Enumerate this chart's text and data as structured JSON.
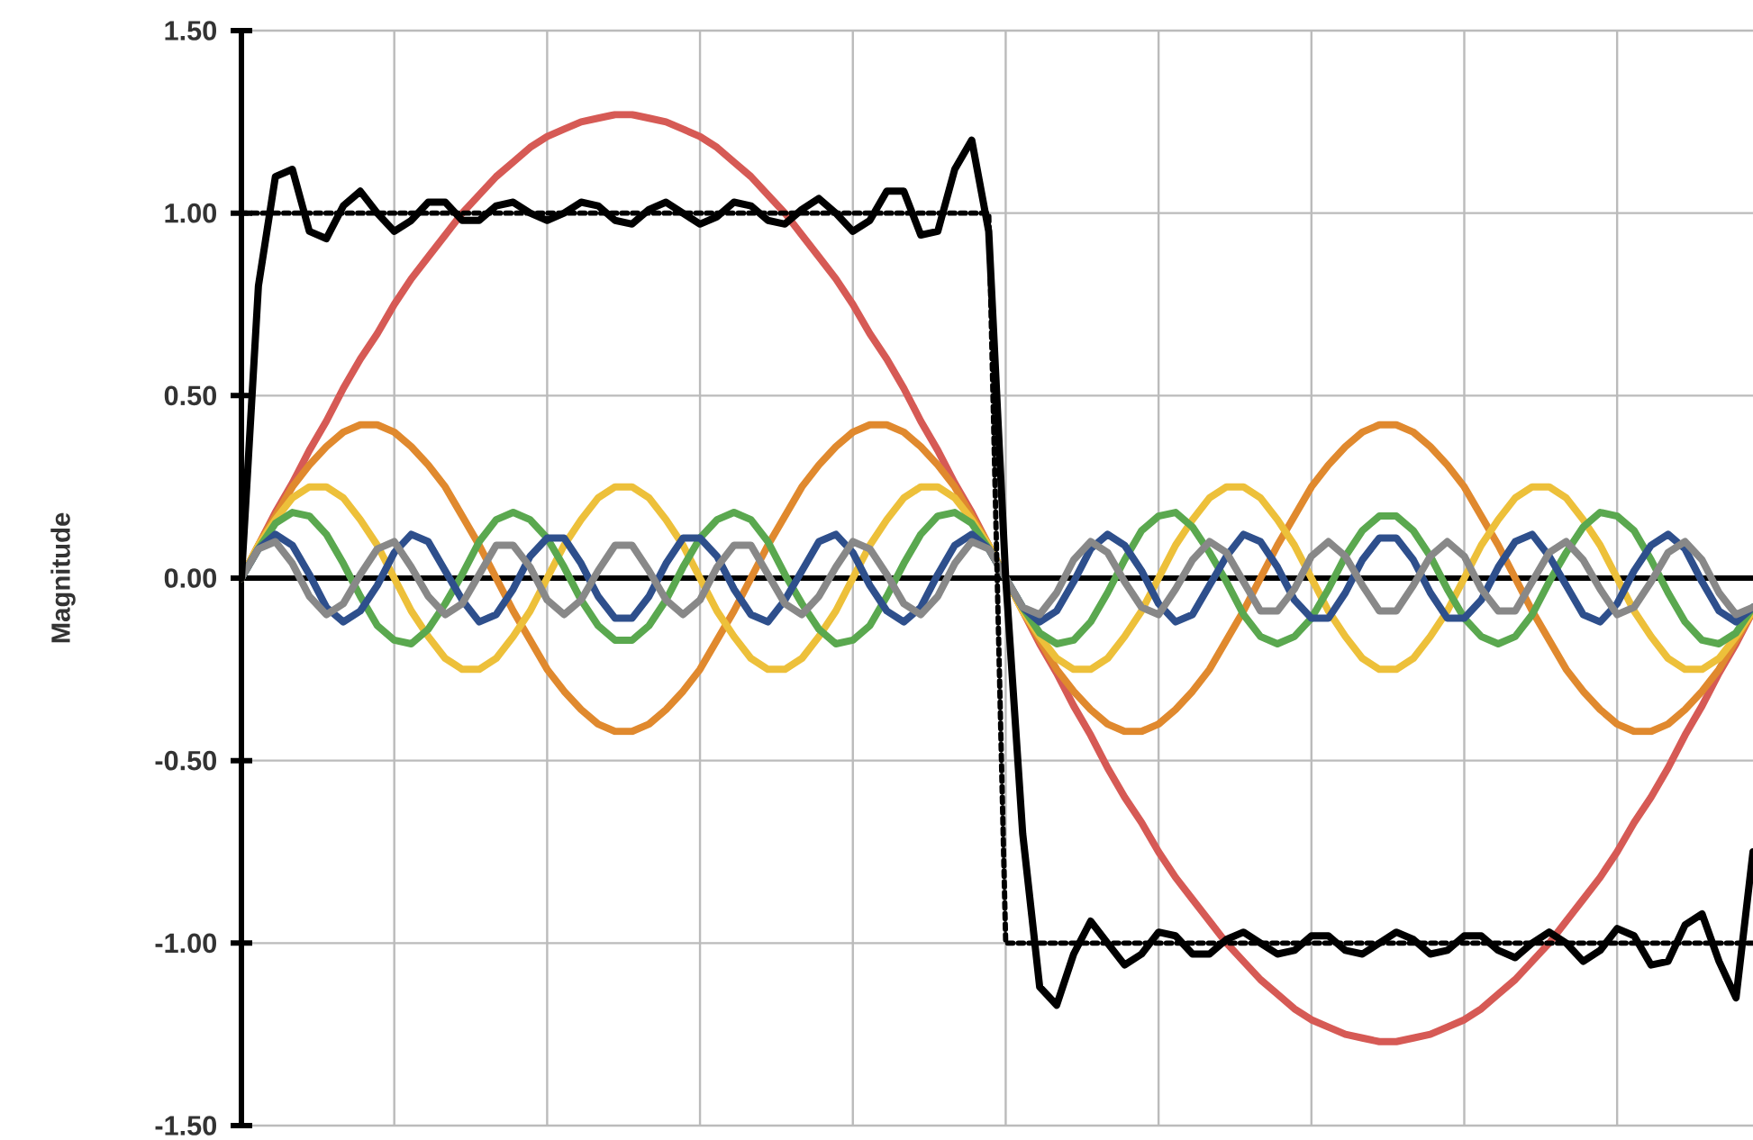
{
  "chart_data": {
    "type": "line",
    "ylabel": "Magnitude",
    "grid": true,
    "tick_labels": "y",
    "categories": [
      null,
      null,
      null,
      null,
      null,
      null,
      null,
      null,
      null,
      null,
      null,
      null,
      null,
      null,
      null,
      null,
      null,
      null,
      null,
      null,
      null,
      null,
      null,
      null,
      null,
      null,
      null,
      null,
      null,
      null,
      null,
      null,
      null,
      null,
      null,
      null,
      null,
      null,
      null,
      null,
      null,
      null,
      null,
      null,
      null,
      null,
      null,
      null,
      null,
      null,
      null,
      null,
      null,
      null,
      null,
      null,
      null,
      null,
      null,
      null,
      null,
      null,
      null,
      null,
      null,
      null,
      null,
      null,
      null,
      null,
      null,
      null,
      null,
      null,
      null,
      null,
      null,
      null,
      null,
      null,
      null,
      null,
      null,
      null,
      null,
      null,
      null,
      null,
      null,
      null
    ],
    "ylim": [
      -1.5,
      1.5
    ],
    "yticks": [
      {
        "value": -1.5,
        "label": "-1.50"
      },
      {
        "value": -1,
        "label": "-1.00"
      },
      {
        "value": -0.5,
        "label": "-0.50"
      },
      {
        "value": 0,
        "label": "0.00"
      },
      {
        "value": 0.5,
        "label": "0.50"
      },
      {
        "value": 1,
        "label": "1.00"
      },
      {
        "value": 1.5,
        "label": "1.50"
      }
    ],
    "series": [
      {
        "color": "#d65a55",
        "values": [
          0,
          0.09,
          0.18,
          0.26,
          0.35,
          0.43,
          0.52,
          0.6,
          0.67,
          0.75,
          0.82,
          0.88,
          0.94,
          1.0,
          1.05,
          1.1,
          1.14,
          1.18,
          1.21,
          1.23,
          1.25,
          1.26,
          1.27,
          1.27,
          1.26,
          1.25,
          1.23,
          1.21,
          1.18,
          1.14,
          1.1,
          1.05,
          1.0,
          0.94,
          0.88,
          0.82,
          0.75,
          0.67,
          0.6,
          0.52,
          0.43,
          0.35,
          0.26,
          0.18,
          0.09,
          0,
          -0.09,
          -0.18,
          -0.26,
          -0.35,
          -0.43,
          -0.52,
          -0.6,
          -0.67,
          -0.75,
          -0.82,
          -0.88,
          -0.94,
          -1.0,
          -1.05,
          -1.1,
          -1.14,
          -1.18,
          -1.21,
          -1.23,
          -1.25,
          -1.26,
          -1.27,
          -1.27,
          -1.26,
          -1.25,
          -1.23,
          -1.21,
          -1.18,
          -1.14,
          -1.1,
          -1.05,
          -1.0,
          -0.94,
          -0.88,
          -0.82,
          -0.75,
          -0.67,
          -0.6,
          -0.52,
          -0.43,
          -0.35,
          -0.26,
          -0.18,
          -0.09
        ]
      },
      {
        "color": "#e0892e",
        "values": [
          0,
          0.09,
          0.17,
          0.25,
          0.31,
          0.36,
          0.4,
          0.42,
          0.42,
          0.4,
          0.36,
          0.31,
          0.25,
          0.17,
          0.09,
          0,
          -0.09,
          -0.17,
          -0.25,
          -0.31,
          -0.36,
          -0.4,
          -0.42,
          -0.42,
          -0.4,
          -0.36,
          -0.31,
          -0.25,
          -0.17,
          -0.09,
          0,
          0.09,
          0.17,
          0.25,
          0.31,
          0.36,
          0.4,
          0.42,
          0.42,
          0.4,
          0.36,
          0.31,
          0.25,
          0.17,
          0.09,
          0,
          -0.09,
          -0.17,
          -0.25,
          -0.31,
          -0.36,
          -0.4,
          -0.42,
          -0.42,
          -0.4,
          -0.36,
          -0.31,
          -0.25,
          -0.17,
          -0.09,
          0,
          0.09,
          0.17,
          0.25,
          0.31,
          0.36,
          0.4,
          0.42,
          0.42,
          0.4,
          0.36,
          0.31,
          0.25,
          0.17,
          0.09,
          0,
          -0.09,
          -0.17,
          -0.25,
          -0.31,
          -0.36,
          -0.4,
          -0.42,
          -0.42,
          -0.4,
          -0.36,
          -0.31,
          -0.25,
          -0.17,
          -0.09
        ]
      },
      {
        "color": "#edc03a",
        "values": [
          0,
          0.09,
          0.16,
          0.22,
          0.25,
          0.25,
          0.22,
          0.16,
          0.09,
          0,
          -0.09,
          -0.16,
          -0.22,
          -0.25,
          -0.25,
          -0.22,
          -0.16,
          -0.09,
          0,
          0.09,
          0.16,
          0.22,
          0.25,
          0.25,
          0.22,
          0.16,
          0.09,
          0,
          -0.09,
          -0.16,
          -0.22,
          -0.25,
          -0.25,
          -0.22,
          -0.16,
          -0.09,
          0,
          0.09,
          0.16,
          0.22,
          0.25,
          0.25,
          0.22,
          0.16,
          0.09,
          0,
          -0.09,
          -0.16,
          -0.22,
          -0.25,
          -0.25,
          -0.22,
          -0.16,
          -0.09,
          0,
          0.09,
          0.16,
          0.22,
          0.25,
          0.25,
          0.22,
          0.16,
          0.09,
          0,
          -0.09,
          -0.16,
          -0.22,
          -0.25,
          -0.25,
          -0.22,
          -0.16,
          -0.09,
          0,
          0.09,
          0.16,
          0.22,
          0.25,
          0.25,
          0.22,
          0.16,
          0.09,
          0,
          -0.09,
          -0.16,
          -0.22,
          -0.25,
          -0.25,
          -0.22,
          -0.16,
          -0.09
        ]
      },
      {
        "color": "#5aa84f",
        "values": [
          0,
          0.08,
          0.15,
          0.18,
          0.17,
          0.12,
          0.04,
          -0.05,
          -0.13,
          -0.17,
          -0.18,
          -0.14,
          -0.07,
          0.01,
          0.1,
          0.16,
          0.18,
          0.16,
          0.11,
          0.03,
          -0.06,
          -0.13,
          -0.17,
          -0.17,
          -0.13,
          -0.06,
          0.03,
          0.11,
          0.16,
          0.18,
          0.16,
          0.1,
          0.01,
          -0.07,
          -0.14,
          -0.18,
          -0.17,
          -0.13,
          -0.05,
          0.04,
          0.12,
          0.17,
          0.18,
          0.15,
          0.08,
          0,
          -0.08,
          -0.15,
          -0.18,
          -0.17,
          -0.12,
          -0.04,
          0.05,
          0.13,
          0.17,
          0.18,
          0.14,
          0.07,
          -0.01,
          -0.1,
          -0.16,
          -0.18,
          -0.16,
          -0.11,
          -0.03,
          0.06,
          0.13,
          0.17,
          0.17,
          0.13,
          0.06,
          -0.03,
          -0.11,
          -0.16,
          -0.18,
          -0.16,
          -0.1,
          -0.01,
          0.07,
          0.14,
          0.18,
          0.17,
          0.13,
          0.05,
          -0.04,
          -0.12,
          -0.17,
          -0.18,
          -0.15,
          -0.08
        ]
      },
      {
        "color": "#2e4f8c",
        "values": [
          0,
          0.08,
          0.12,
          0.09,
          0.01,
          -0.08,
          -0.12,
          -0.09,
          -0.02,
          0.07,
          0.12,
          0.1,
          0.02,
          -0.06,
          -0.12,
          -0.1,
          -0.03,
          0.06,
          0.11,
          0.11,
          0.04,
          -0.05,
          -0.11,
          -0.11,
          -0.05,
          0.04,
          0.11,
          0.11,
          0.06,
          -0.03,
          -0.1,
          -0.12,
          -0.06,
          0.02,
          0.1,
          0.12,
          0.07,
          -0.02,
          -0.09,
          -0.12,
          -0.08,
          0.01,
          0.09,
          0.12,
          0.08,
          0,
          -0.08,
          -0.12,
          -0.09,
          -0.01,
          0.08,
          0.12,
          0.09,
          0.02,
          -0.07,
          -0.12,
          -0.1,
          -0.02,
          0.06,
          0.12,
          0.1,
          0.03,
          -0.06,
          -0.11,
          -0.11,
          -0.04,
          0.05,
          0.11,
          0.11,
          0.05,
          -0.04,
          -0.11,
          -0.11,
          -0.06,
          0.03,
          0.1,
          0.12,
          0.06,
          -0.02,
          -0.1,
          -0.12,
          -0.07,
          0.02,
          0.09,
          0.12,
          0.08,
          -0.01,
          -0.09,
          -0.12,
          -0.08
        ]
      },
      {
        "color": "#888888",
        "values": [
          0,
          0.08,
          0.1,
          0.04,
          -0.05,
          -0.1,
          -0.07,
          0.01,
          0.08,
          0.1,
          0.03,
          -0.05,
          -0.1,
          -0.07,
          0.01,
          0.09,
          0.09,
          0.03,
          -0.06,
          -0.1,
          -0.06,
          0.02,
          0.09,
          0.09,
          0.02,
          -0.06,
          -0.1,
          -0.06,
          0.03,
          0.09,
          0.09,
          0.01,
          -0.07,
          -0.1,
          -0.05,
          0.03,
          0.1,
          0.08,
          0.01,
          -0.07,
          -0.1,
          -0.05,
          0.04,
          0.1,
          0.08,
          0,
          -0.08,
          -0.1,
          -0.04,
          0.05,
          0.1,
          0.07,
          -0.01,
          -0.08,
          -0.1,
          -0.03,
          0.05,
          0.1,
          0.07,
          -0.01,
          -0.09,
          -0.09,
          -0.03,
          0.06,
          0.1,
          0.06,
          -0.02,
          -0.09,
          -0.09,
          -0.02,
          0.06,
          0.1,
          0.06,
          -0.03,
          -0.09,
          -0.09,
          -0.01,
          0.07,
          0.1,
          0.05,
          -0.03,
          -0.1,
          -0.08,
          -0.01,
          0.07,
          0.1,
          0.05,
          -0.04,
          -0.1,
          -0.08
        ]
      },
      {
        "line_style": "dotted",
        "color": "#000000",
        "values": [
          1,
          1,
          1,
          1,
          1,
          1,
          1,
          1,
          1,
          1,
          1,
          1,
          1,
          1,
          1,
          1,
          1,
          1,
          1,
          1,
          1,
          1,
          1,
          1,
          1,
          1,
          1,
          1,
          1,
          1,
          1,
          1,
          1,
          1,
          1,
          1,
          1,
          1,
          1,
          1,
          1,
          1,
          1,
          1,
          1,
          -1,
          -1,
          -1,
          -1,
          -1,
          -1,
          -1,
          -1,
          -1,
          -1,
          -1,
          -1,
          -1,
          -1,
          -1,
          -1,
          -1,
          -1,
          -1,
          -1,
          -1,
          -1,
          -1,
          -1,
          -1,
          -1,
          -1,
          -1,
          -1,
          -1,
          -1,
          -1,
          -1,
          -1,
          -1,
          -1,
          -1,
          -1,
          -1,
          -1,
          -1,
          -1,
          -1,
          -1,
          -1
        ]
      },
      {
        "color": "#000000",
        "values": [
          0,
          0.8,
          1.1,
          1.12,
          0.95,
          0.93,
          1.02,
          1.06,
          1.0,
          0.95,
          0.98,
          1.03,
          1.03,
          0.98,
          0.98,
          1.02,
          1.03,
          1.0,
          0.98,
          1.0,
          1.03,
          1.02,
          0.98,
          0.97,
          1.01,
          1.03,
          1.0,
          0.97,
          0.99,
          1.03,
          1.02,
          0.98,
          0.97,
          1.01,
          1.04,
          1.0,
          0.95,
          0.98,
          1.06,
          1.06,
          0.94,
          0.95,
          1.12,
          1.2,
          0.95,
          0,
          -0.7,
          -1.12,
          -1.17,
          -1.03,
          -0.94,
          -1.0,
          -1.06,
          -1.03,
          -0.97,
          -0.98,
          -1.03,
          -1.03,
          -0.99,
          -0.97,
          -1.0,
          -1.03,
          -1.02,
          -0.98,
          -0.98,
          -1.02,
          -1.03,
          -1.0,
          -0.97,
          -0.99,
          -1.03,
          -1.02,
          -0.98,
          -0.98,
          -1.02,
          -1.04,
          -1.0,
          -0.97,
          -1.0,
          -1.05,
          -1.02,
          -0.96,
          -0.98,
          -1.06,
          -1.05,
          -0.95,
          -0.92,
          -1.05,
          -1.15,
          -0.75
        ]
      }
    ]
  }
}
